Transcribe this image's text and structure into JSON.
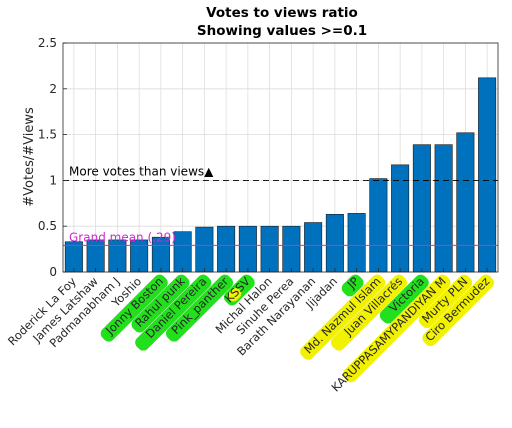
{
  "chart_data": {
    "type": "bar",
    "title": "Votes to views ratio",
    "subtitle": "Showing values >=0.1",
    "ylabel": "#Votes/#Views",
    "xlabel": "",
    "ylim": [
      0,
      2.5
    ],
    "yticks": [
      0,
      0.5,
      1,
      1.5,
      2,
      2.5
    ],
    "ytick_labels": [
      "0",
      "0.5",
      "1",
      "1.5",
      "2",
      "2.5"
    ],
    "grid": true,
    "bar_color": "#0072bd",
    "categories": [
      "Roderick La Foy",
      "James Latshaw",
      "Padmanabham J",
      "Yoshio",
      "Jonny Boston",
      "Rahul punk",
      "Daniel Pereira",
      "Pink_panther",
      "KSSV",
      "Michal Halon",
      "Sinuhe Perea",
      "Barath Narayanan",
      "Jijadan",
      "JP",
      "Md. Nazmul Islam",
      "Juan Villacrés",
      "Victoria",
      "KARUPPASAMYPANDIYAN M",
      "Murty PLN",
      "Ciro Bermudez"
    ],
    "values": [
      0.33,
      0.35,
      0.35,
      0.35,
      0.38,
      0.44,
      0.49,
      0.5,
      0.5,
      0.5,
      0.5,
      0.54,
      0.63,
      0.64,
      1.02,
      1.17,
      1.39,
      1.39,
      1.52,
      2.12
    ],
    "highlights": {
      "green": [
        "Jonny Boston",
        "Rahul punk",
        "Daniel Pereira",
        "Pink_panther",
        "KSSV",
        "JP",
        "Victoria"
      ],
      "yellow": [
        "KSSV",
        "Md. Nazmul Islam",
        "Juan Villacrés",
        "KARUPPASAMYPANDIYAN M",
        "Murty PLN",
        "Ciro Bermudez"
      ],
      "green_color": "#22e01c",
      "yellow_color": "#f2f200"
    },
    "reference_lines": [
      {
        "value": 1,
        "label": "More votes than views▲",
        "style": "dashed",
        "color": "#000000"
      },
      {
        "value": 0.29,
        "label": "Grand mean (.29)",
        "style": "solid",
        "color": "#d028d0"
      }
    ]
  }
}
